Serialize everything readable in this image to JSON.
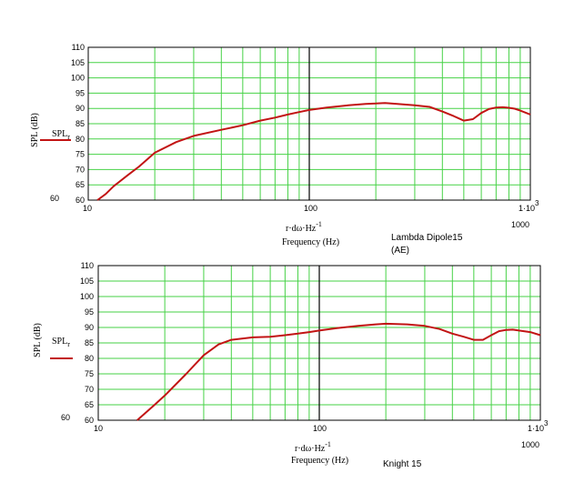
{
  "colors": {
    "grid": "#46d246",
    "major": "#000000",
    "curve": "#c21414",
    "frame": "#000000"
  },
  "chart_data": [
    {
      "type": "line",
      "xscale": "log",
      "xlim": [
        10,
        1000
      ],
      "ylim": [
        60,
        110
      ],
      "ylabel": "SPL (dB)",
      "xlabel_expr": "r·dω·Hz",
      "xlabel_exp": "-1",
      "xlabel_units": "Frequency (Hz)",
      "legend_label": "SPL",
      "legend_sub": "r",
      "caption_line1": "Lambda Dipole15",
      "caption_line2": "(AE)",
      "yticks": [
        "110",
        "105",
        "100",
        "95",
        "90",
        "85",
        "80",
        "75",
        "70",
        "65",
        "60"
      ],
      "y60_label": "60",
      "xtick_left": "10",
      "xtick_mid": "100",
      "xtick_right": "1000",
      "xtick_end_prefix": "1·10",
      "xtick_end_exp": "3",
      "series": [
        {
          "x": [
            11,
            12,
            13,
            15,
            17,
            20,
            25,
            30,
            40,
            50,
            60,
            70,
            80,
            90,
            100,
            120,
            150,
            180,
            200,
            220,
            250,
            300,
            350,
            400,
            450,
            500,
            550,
            600,
            650,
            700,
            750,
            800,
            850,
            900,
            1000
          ],
          "y": [
            60,
            62,
            64.5,
            68,
            71,
            75.5,
            79,
            81,
            83,
            84.5,
            86,
            87,
            88,
            88.8,
            89.5,
            90.3,
            91,
            91.5,
            91.6,
            91.8,
            91.5,
            91,
            90.5,
            89,
            87.5,
            86,
            86.5,
            88.5,
            89.8,
            90.3,
            90.4,
            90.2,
            89.9,
            89.3,
            88
          ]
        }
      ]
    },
    {
      "type": "line",
      "xscale": "log",
      "xlim": [
        10,
        1000
      ],
      "ylim": [
        60,
        110
      ],
      "ylabel": "SPL (dB)",
      "xlabel_expr": "r·dω·Hz",
      "xlabel_exp": "-1",
      "xlabel_units": "Frequency (Hz)",
      "legend_label": "SPL",
      "legend_sub": "r",
      "caption_line1": "Knight 15",
      "yticks": [
        "110",
        "105",
        "100",
        "95",
        "90",
        "85",
        "80",
        "75",
        "70",
        "65",
        "60"
      ],
      "y60_label": "60",
      "xtick_left": "10",
      "xtick_mid": "100",
      "xtick_right": "1000",
      "xtick_end_prefix": "1·10",
      "xtick_end_exp": "3",
      "series": [
        {
          "x": [
            15,
            18,
            20,
            25,
            30,
            35,
            40,
            50,
            60,
            70,
            80,
            90,
            100,
            120,
            150,
            180,
            200,
            250,
            300,
            350,
            400,
            450,
            500,
            550,
            600,
            650,
            700,
            750,
            800,
            900,
            1000
          ],
          "y": [
            60,
            65,
            68,
            75,
            81,
            84.5,
            86,
            86.8,
            87,
            87.5,
            88,
            88.5,
            89,
            89.8,
            90.5,
            91,
            91.2,
            91,
            90.5,
            89.5,
            88,
            87,
            86,
            86,
            87.5,
            88.8,
            89.2,
            89.3,
            89,
            88.5,
            87.5
          ]
        }
      ]
    }
  ]
}
